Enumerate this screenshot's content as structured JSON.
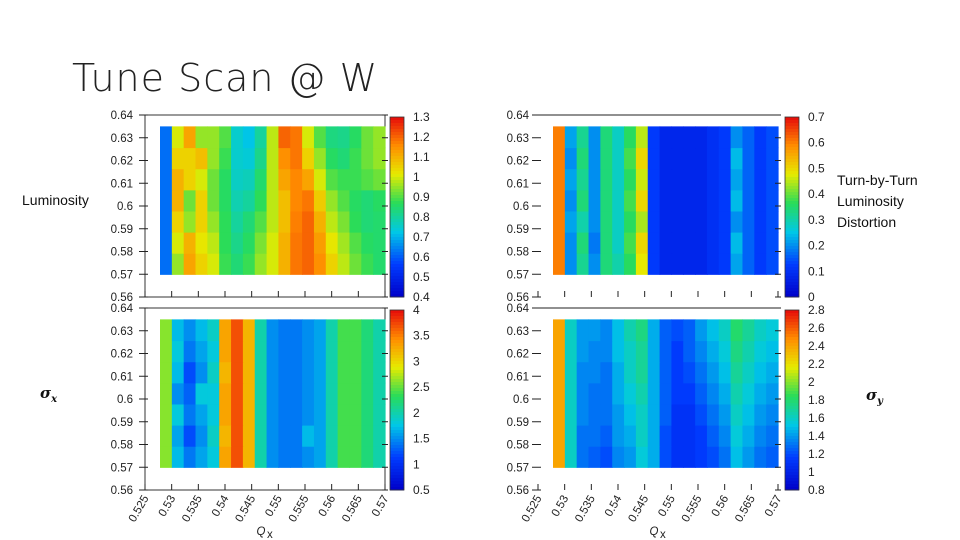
{
  "slide": {
    "title": "Tune Scan @ W",
    "labels": {
      "luminosity": "Luminosity",
      "ttld": [
        "Turn-by-Turn",
        "Luminosity",
        "Distortion"
      ],
      "sigma_x_symbol": "σ",
      "sigma_x_sub": "x",
      "sigma_y_symbol": "σ",
      "sigma_y_sub": "y"
    }
  },
  "chart_data": [
    {
      "id": "luminosity",
      "type": "heatmap",
      "xlabel": "",
      "ylabel": "",
      "xlim": [
        0.525,
        0.57
      ],
      "ylim": [
        0.56,
        0.64
      ],
      "y_ticks": [
        "0.64",
        "0.63",
        "0.62",
        "0.61",
        "0.6",
        "0.59",
        "0.58",
        "0.57",
        "0.56"
      ],
      "data_x_range": [
        0.525,
        0.57
      ],
      "data_y_range": [
        0.57,
        0.635
      ],
      "colorbar": {
        "min": 0.4,
        "max": 1.3,
        "ticks": [
          "1.3",
          "1.2",
          "1.1",
          "1",
          "0.9",
          "0.8",
          "0.7",
          "0.6",
          "0.5",
          "0.4"
        ]
      },
      "x": [
        0.525,
        0.5275,
        0.53,
        0.5325,
        0.535,
        0.5375,
        0.54,
        0.5425,
        0.545,
        0.5475,
        0.55,
        0.5525,
        0.555,
        0.5575,
        0.56,
        0.5625,
        0.565,
        0.5675,
        0.57
      ],
      "y": [
        0.57,
        0.58,
        0.59,
        0.6,
        0.61,
        0.62,
        0.63
      ],
      "z": [
        [
          0.62,
          0.95,
          1.12,
          1.05,
          1.0,
          0.88,
          0.84,
          0.88,
          0.95,
          1.0,
          1.1,
          1.18,
          1.2,
          1.15,
          1.05,
          0.98,
          0.92,
          0.88,
          0.85
        ],
        [
          0.62,
          1.0,
          1.1,
          1.02,
          0.98,
          0.87,
          0.82,
          0.86,
          0.93,
          1.0,
          1.1,
          1.18,
          1.2,
          1.13,
          1.02,
          0.96,
          0.9,
          0.86,
          0.85
        ],
        [
          0.62,
          1.05,
          0.95,
          1.05,
          0.95,
          0.87,
          0.8,
          0.84,
          0.9,
          0.98,
          1.08,
          1.17,
          1.2,
          1.1,
          0.98,
          0.93,
          0.87,
          0.84,
          0.85
        ],
        [
          0.62,
          1.1,
          0.92,
          1.05,
          0.92,
          0.86,
          0.78,
          0.8,
          0.87,
          0.98,
          1.08,
          1.16,
          1.18,
          1.06,
          0.95,
          0.9,
          0.86,
          0.84,
          0.86
        ],
        [
          0.62,
          1.1,
          1.05,
          1.0,
          0.92,
          0.86,
          0.76,
          0.77,
          0.85,
          0.98,
          1.12,
          1.16,
          1.12,
          1.0,
          0.9,
          0.88,
          0.88,
          0.9,
          0.92
        ],
        [
          0.62,
          1.05,
          1.05,
          1.08,
          0.95,
          0.88,
          0.75,
          0.74,
          0.82,
          0.98,
          1.15,
          1.18,
          1.05,
          0.95,
          0.86,
          0.84,
          0.88,
          0.92,
          0.95
        ],
        [
          0.62,
          1.0,
          1.12,
          0.95,
          0.95,
          0.9,
          0.75,
          0.72,
          0.8,
          0.98,
          1.2,
          1.18,
          1.0,
          0.9,
          0.83,
          0.82,
          0.86,
          0.92,
          0.95
        ]
      ]
    },
    {
      "id": "ttld",
      "type": "heatmap",
      "xlabel": "",
      "ylabel": "",
      "xlim": [
        0.525,
        0.57
      ],
      "ylim": [
        0.56,
        0.64
      ],
      "y_ticks": [
        "0.64",
        "0.63",
        "0.62",
        "0.61",
        "0.6",
        "0.59",
        "0.58",
        "0.57",
        "0.56"
      ],
      "data_x_range": [
        0.525,
        0.57
      ],
      "data_y_range": [
        0.57,
        0.635
      ],
      "colorbar": {
        "min": 0.0,
        "max": 0.7,
        "ticks": [
          "0.7",
          "0.6",
          "0.5",
          "0.4",
          "0.3",
          "0.2",
          "0.1",
          "0"
        ]
      },
      "x": [
        0.525,
        0.5275,
        0.53,
        0.5325,
        0.535,
        0.5375,
        0.54,
        0.5425,
        0.545,
        0.5475,
        0.55,
        0.5525,
        0.555,
        0.5575,
        0.56,
        0.5625,
        0.565,
        0.5675,
        0.57
      ],
      "y": [
        0.57,
        0.58,
        0.59,
        0.6,
        0.61,
        0.62,
        0.63
      ],
      "z": [
        [
          0.6,
          0.2,
          0.32,
          0.2,
          0.34,
          0.3,
          0.36,
          0.48,
          0.12,
          0.08,
          0.08,
          0.08,
          0.08,
          0.1,
          0.12,
          0.22,
          0.16,
          0.12,
          0.14
        ],
        [
          0.6,
          0.2,
          0.34,
          0.18,
          0.34,
          0.28,
          0.38,
          0.5,
          0.12,
          0.08,
          0.08,
          0.08,
          0.08,
          0.1,
          0.12,
          0.24,
          0.16,
          0.12,
          0.14
        ],
        [
          0.6,
          0.22,
          0.3,
          0.2,
          0.34,
          0.28,
          0.36,
          0.44,
          0.12,
          0.08,
          0.08,
          0.08,
          0.08,
          0.1,
          0.12,
          0.2,
          0.16,
          0.12,
          0.14
        ],
        [
          0.6,
          0.2,
          0.34,
          0.2,
          0.34,
          0.28,
          0.38,
          0.5,
          0.12,
          0.08,
          0.08,
          0.08,
          0.08,
          0.1,
          0.12,
          0.24,
          0.16,
          0.12,
          0.14
        ],
        [
          0.6,
          0.22,
          0.32,
          0.2,
          0.34,
          0.28,
          0.36,
          0.46,
          0.12,
          0.08,
          0.08,
          0.08,
          0.08,
          0.1,
          0.12,
          0.22,
          0.16,
          0.12,
          0.14
        ],
        [
          0.6,
          0.2,
          0.34,
          0.2,
          0.34,
          0.28,
          0.38,
          0.5,
          0.12,
          0.08,
          0.08,
          0.08,
          0.08,
          0.1,
          0.12,
          0.24,
          0.16,
          0.12,
          0.14
        ],
        [
          0.6,
          0.22,
          0.32,
          0.2,
          0.34,
          0.28,
          0.36,
          0.45,
          0.12,
          0.08,
          0.08,
          0.08,
          0.08,
          0.1,
          0.12,
          0.2,
          0.16,
          0.12,
          0.14
        ]
      ]
    },
    {
      "id": "sigma_x",
      "type": "heatmap",
      "xlabel": "Q_x",
      "ylabel": "",
      "xlim": [
        0.525,
        0.57
      ],
      "ylim": [
        0.56,
        0.64
      ],
      "y_ticks": [
        "0.64",
        "0.63",
        "0.62",
        "0.61",
        "0.6",
        "0.59",
        "0.58",
        "0.57",
        "0.56"
      ],
      "x_ticks": [
        "0.525",
        "0.53",
        "0.535",
        "0.54",
        "0.545",
        "0.55",
        "0.555",
        "0.56",
        "0.565",
        "0.57"
      ],
      "data_x_range": [
        0.525,
        0.57
      ],
      "data_y_range": [
        0.57,
        0.635
      ],
      "colorbar": {
        "min": 0.5,
        "max": 4.0,
        "ticks": [
          "4",
          "3.5",
          "3",
          "2.5",
          "2",
          "1.5",
          "1",
          "0.5"
        ]
      },
      "x": [
        0.525,
        0.5275,
        0.53,
        0.5325,
        0.535,
        0.5375,
        0.54,
        0.5425,
        0.545,
        0.5475,
        0.55,
        0.5525,
        0.555,
        0.5575,
        0.56,
        0.5625,
        0.565,
        0.5675,
        0.57
      ],
      "y": [
        0.57,
        0.58,
        0.59,
        0.6,
        0.61,
        0.62,
        0.63
      ],
      "z": [
        [
          2.6,
          1.7,
          1.4,
          1.6,
          1.8,
          3.3,
          3.7,
          3.2,
          2.0,
          1.5,
          1.4,
          1.4,
          1.5,
          1.6,
          2.0,
          2.4,
          2.4,
          2.2,
          2.0
        ],
        [
          2.6,
          1.6,
          1.2,
          1.5,
          1.9,
          3.2,
          3.7,
          3.2,
          2.0,
          1.5,
          1.4,
          1.4,
          1.7,
          1.6,
          2.0,
          2.4,
          2.4,
          2.2,
          2.0
        ],
        [
          2.6,
          1.8,
          1.4,
          1.6,
          1.8,
          3.3,
          3.7,
          3.2,
          2.0,
          1.5,
          1.4,
          1.4,
          1.5,
          1.6,
          2.0,
          2.4,
          2.4,
          2.2,
          2.0
        ],
        [
          2.6,
          1.5,
          1.3,
          1.8,
          1.8,
          3.3,
          3.7,
          3.2,
          2.0,
          1.5,
          1.4,
          1.4,
          1.5,
          1.6,
          2.0,
          2.4,
          2.4,
          2.2,
          2.0
        ],
        [
          2.6,
          1.7,
          1.2,
          1.5,
          1.9,
          3.2,
          3.7,
          3.2,
          2.0,
          1.5,
          1.4,
          1.4,
          1.5,
          1.6,
          2.0,
          2.4,
          2.4,
          2.2,
          2.0
        ],
        [
          2.6,
          1.8,
          1.4,
          1.6,
          1.8,
          3.3,
          3.7,
          3.2,
          2.0,
          1.5,
          1.4,
          1.4,
          1.5,
          1.6,
          2.0,
          2.4,
          2.4,
          2.2,
          2.0
        ],
        [
          2.6,
          1.7,
          1.5,
          1.7,
          1.9,
          3.3,
          3.7,
          3.2,
          2.0,
          1.5,
          1.4,
          1.4,
          1.5,
          1.6,
          2.0,
          2.4,
          2.4,
          2.2,
          2.0
        ]
      ]
    },
    {
      "id": "sigma_y",
      "type": "heatmap",
      "xlabel": "Q_x",
      "ylabel": "",
      "xlim": [
        0.525,
        0.57
      ],
      "ylim": [
        0.56,
        0.64
      ],
      "y_ticks": [
        "0.64",
        "0.63",
        "0.62",
        "0.61",
        "0.6",
        "0.59",
        "0.58",
        "0.57",
        "0.56"
      ],
      "x_ticks": [
        "0.525",
        "0.53",
        "0.535",
        "0.54",
        "0.545",
        "0.55",
        "0.555",
        "0.56",
        "0.565",
        "0.57"
      ],
      "data_x_range": [
        0.525,
        0.57
      ],
      "data_y_range": [
        0.57,
        0.635
      ],
      "colorbar": {
        "min": 0.8,
        "max": 2.8,
        "ticks": [
          "2.8",
          "2.6",
          "2.4",
          "2.2",
          "2",
          "1.8",
          "1.6",
          "1.4",
          "1.2",
          "1",
          "0.8"
        ]
      },
      "x": [
        0.525,
        0.5275,
        0.53,
        0.5325,
        0.535,
        0.5375,
        0.54,
        0.5425,
        0.545,
        0.5475,
        0.55,
        0.5525,
        0.555,
        0.5575,
        0.56,
        0.5625,
        0.565,
        0.5675,
        0.57
      ],
      "y": [
        0.57,
        0.58,
        0.59,
        0.6,
        0.61,
        0.62,
        0.63
      ],
      "z": [
        [
          2.4,
          1.6,
          1.3,
          1.25,
          1.2,
          1.35,
          1.4,
          1.55,
          1.45,
          1.2,
          1.1,
          1.1,
          1.15,
          1.2,
          1.3,
          1.5,
          1.4,
          1.3,
          1.25
        ],
        [
          2.4,
          1.6,
          1.3,
          1.3,
          1.25,
          1.4,
          1.45,
          1.6,
          1.45,
          1.2,
          1.1,
          1.1,
          1.15,
          1.25,
          1.35,
          1.55,
          1.45,
          1.35,
          1.3
        ],
        [
          2.4,
          1.6,
          1.35,
          1.3,
          1.3,
          1.4,
          1.5,
          1.6,
          1.45,
          1.25,
          1.1,
          1.1,
          1.2,
          1.3,
          1.4,
          1.6,
          1.5,
          1.4,
          1.35
        ],
        [
          2.4,
          1.6,
          1.35,
          1.3,
          1.3,
          1.45,
          1.55,
          1.65,
          1.45,
          1.25,
          1.15,
          1.15,
          1.25,
          1.35,
          1.45,
          1.65,
          1.55,
          1.45,
          1.4
        ],
        [
          2.4,
          1.6,
          1.35,
          1.35,
          1.3,
          1.45,
          1.6,
          1.7,
          1.45,
          1.25,
          1.15,
          1.2,
          1.3,
          1.4,
          1.5,
          1.7,
          1.6,
          1.5,
          1.45
        ],
        [
          2.4,
          1.6,
          1.4,
          1.35,
          1.35,
          1.5,
          1.6,
          1.7,
          1.45,
          1.25,
          1.15,
          1.25,
          1.35,
          1.45,
          1.55,
          1.75,
          1.65,
          1.55,
          1.5
        ],
        [
          2.4,
          1.6,
          1.4,
          1.4,
          1.35,
          1.5,
          1.65,
          1.75,
          1.45,
          1.25,
          1.2,
          1.25,
          1.4,
          1.5,
          1.6,
          1.8,
          1.7,
          1.6,
          1.55
        ]
      ]
    }
  ]
}
